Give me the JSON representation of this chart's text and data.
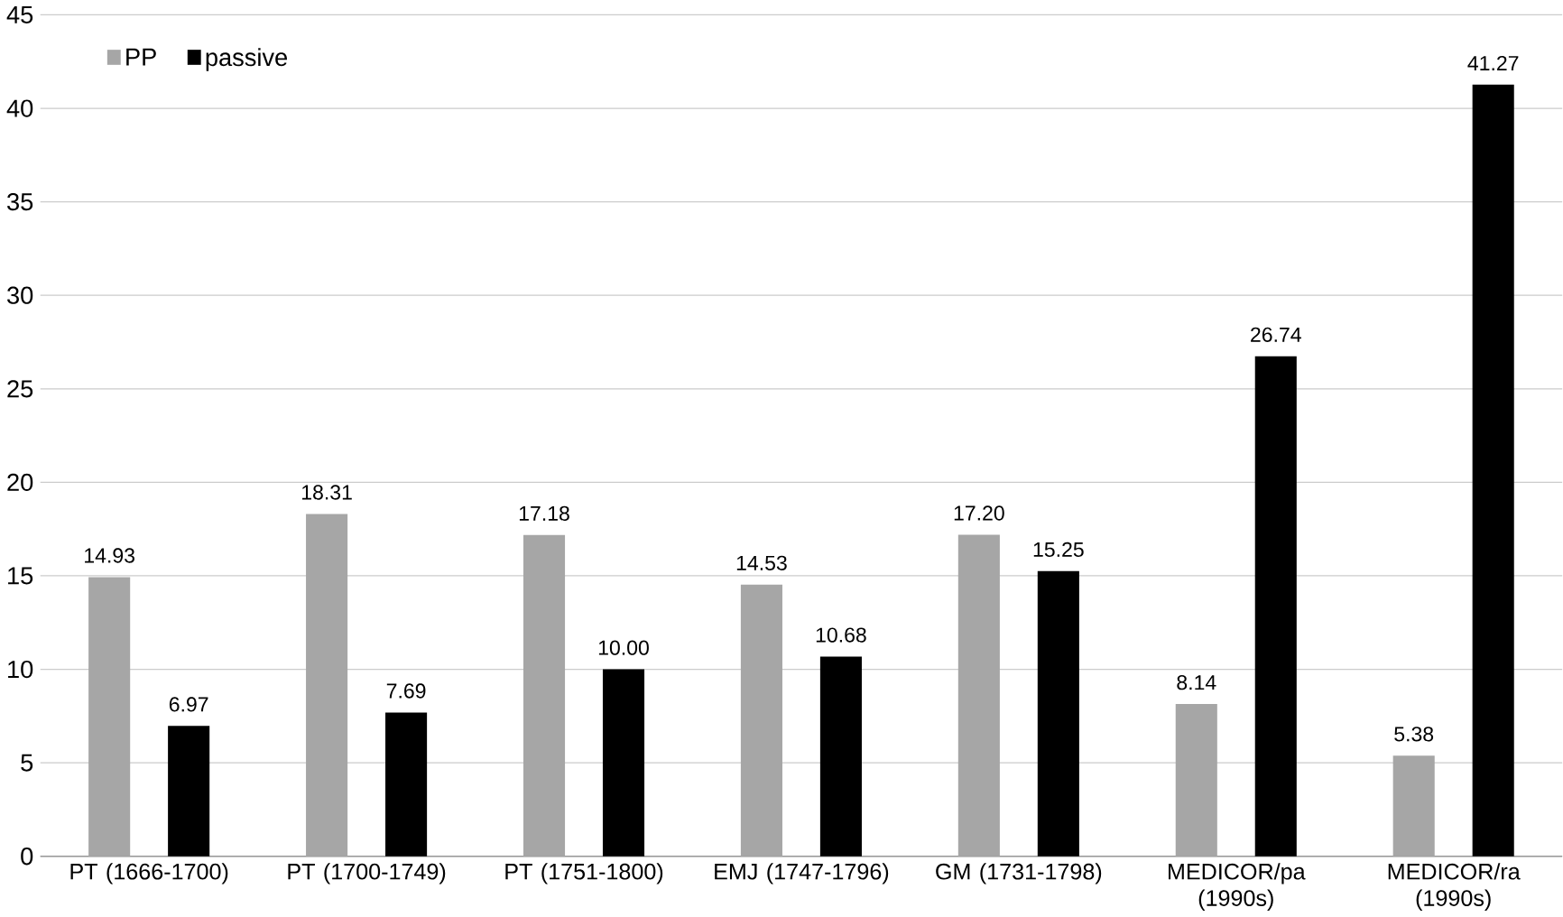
{
  "chart_data": {
    "type": "bar",
    "categories": [
      "PT (1666-1700)",
      "PT (1700-1749)",
      "PT (1751-1800)",
      "EMJ (1747-1796)",
      "GM (1731-1798)",
      "MEDICOR/pa (1990s)",
      "MEDICOR/ra (1990s)"
    ],
    "series": [
      {
        "name": "PP",
        "color": "#a6a6a6",
        "values": [
          14.93,
          18.31,
          17.18,
          14.53,
          17.2,
          8.14,
          5.38
        ],
        "value_labels": [
          "14.93",
          "18.31",
          "17.18",
          "14.53",
          "17.20",
          "8.14",
          "5.38"
        ]
      },
      {
        "name": "passive",
        "color": "#000000",
        "values": [
          6.97,
          7.69,
          10.0,
          10.68,
          15.25,
          26.74,
          41.27
        ],
        "value_labels": [
          "6.97",
          "7.69",
          "10.00",
          "10.68",
          "15.25",
          "26.74",
          "41.27"
        ]
      }
    ],
    "ylim": [
      0,
      45
    ],
    "yticks": [
      0,
      5,
      10,
      15,
      20,
      25,
      30,
      35,
      40,
      45
    ],
    "grid": "y",
    "legend": "top left"
  }
}
